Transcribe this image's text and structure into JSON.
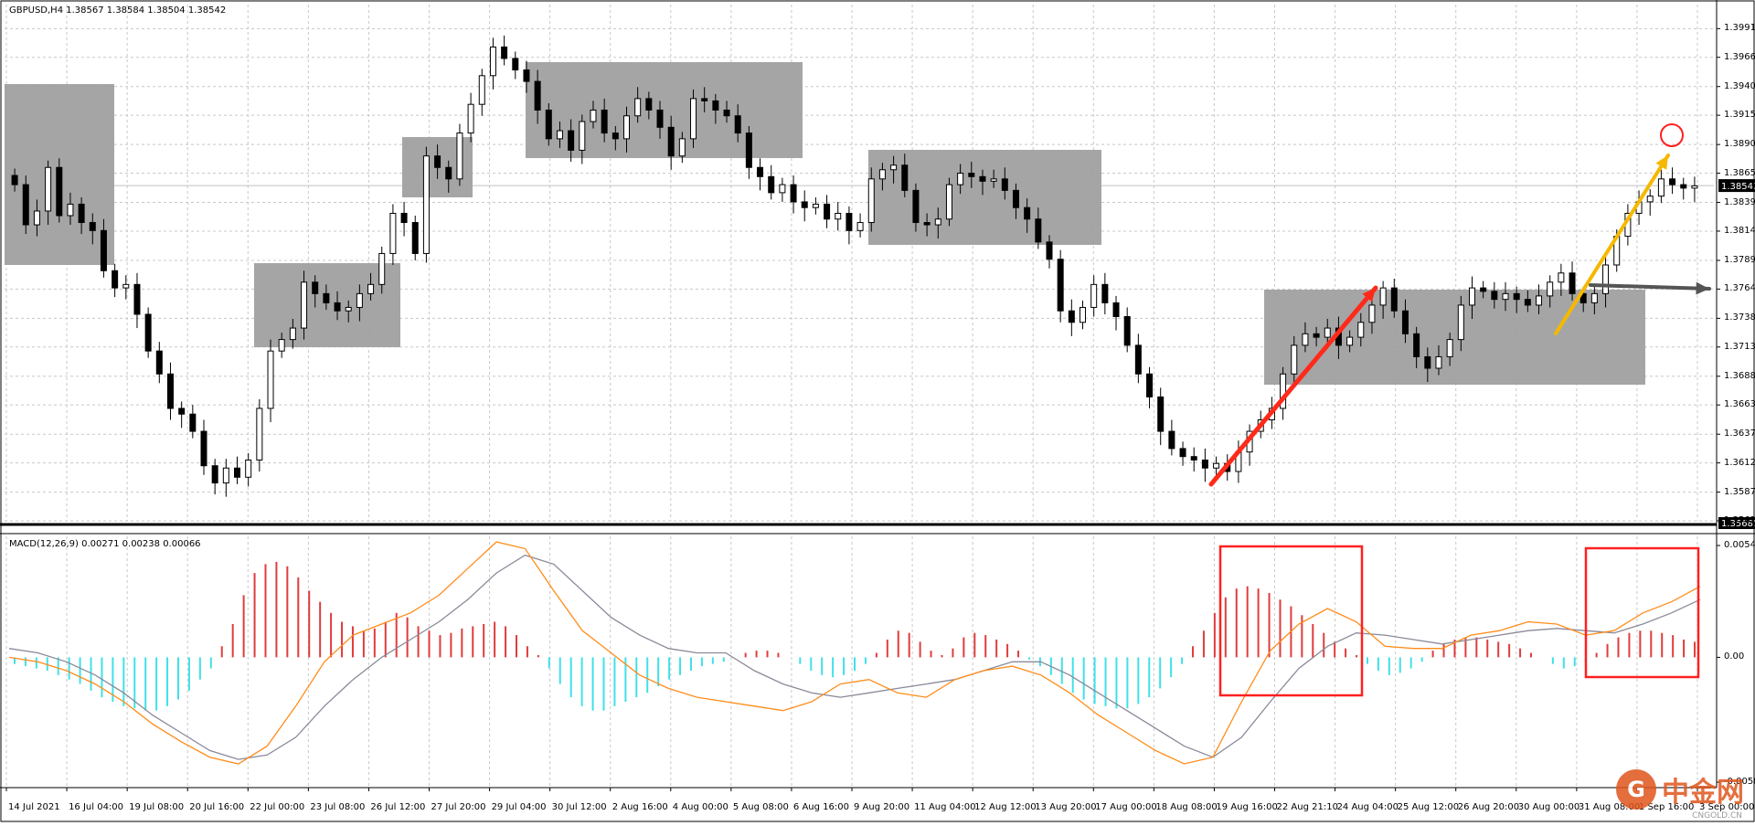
{
  "header": {
    "symbol_info": "GBPUSD,H4  1.38567 1.38584 1.38504 1.38542"
  },
  "macd": {
    "info": "MACD(12,26,9) 0.00271 0.00238 0.00066",
    "axis_labels": [
      "0.00545",
      "0.00",
      "-0.00587"
    ]
  },
  "price_axis": {
    "labels": [
      "1.39910",
      "1.39660",
      "1.39405",
      "1.39155",
      "1.38900",
      "1.38650",
      "1.38395",
      "1.38145",
      "1.37890",
      "1.37640",
      "1.37385",
      "1.37135",
      "1.36880",
      "1.36630",
      "1.36375",
      "1.36125",
      "1.35870",
      "1.35620"
    ],
    "current_price": "1.38542",
    "lower_price": "1.35685"
  },
  "time_axis": {
    "labels": [
      "14 Jul 2021",
      "16 Jul 04:00",
      "19 Jul 08:00",
      "20 Jul 16:00",
      "22 Jul 00:00",
      "23 Jul 08:00",
      "26 Jul 12:00",
      "27 Jul 20:00",
      "29 Jul 04:00",
      "30 Jul 12:00",
      "2 Aug 16:00",
      "4 Aug 00:00",
      "5 Aug 08:00",
      "6 Aug 16:00",
      "9 Aug 20:00",
      "11 Aug 04:00",
      "12 Aug 12:00",
      "13 Aug 20:00",
      "17 Aug 00:00",
      "18 Aug 08:00",
      "19 Aug 16:00",
      "22 Aug 21:10",
      "24 Aug 04:00",
      "25 Aug 12:00",
      "26 Aug 20:00",
      "30 Aug 00:00",
      "31 Aug 08:00",
      "1 Sep 16:00",
      "3 Sep 00:00"
    ]
  },
  "watermark": {
    "logo_char": "G",
    "brand": "中金网",
    "sub": "CNGOLD.CN"
  },
  "colors": {
    "grid": "#c8c8c8",
    "box": "#a0a0a0",
    "hist_pos": "#e03c3c",
    "hist_neg": "#40e0e8",
    "macd_line": "#ff8c1a",
    "signal_line": "#8a8a9a",
    "red_arrow": "#ff2a1a",
    "yellow_arrow": "#f5b800",
    "gray_arrow": "#555555"
  },
  "chart_data": [
    {
      "type": "candlestick",
      "title": "GBPUSD,H4",
      "ylim": [
        1.3562,
        1.4004
      ],
      "candles_close": [
        1.3855,
        1.382,
        1.3832,
        1.387,
        1.3828,
        1.3838,
        1.3822,
        1.3815,
        1.378,
        1.3765,
        1.3768,
        1.3742,
        1.371,
        1.369,
        1.366,
        1.3655,
        1.364,
        1.361,
        1.3595,
        1.3608,
        1.36,
        1.3615,
        1.366,
        1.371,
        1.372,
        1.373,
        1.377,
        1.376,
        1.3752,
        1.3745,
        1.3748,
        1.376,
        1.3768,
        1.3795,
        1.383,
        1.3822,
        1.3795,
        1.388,
        1.387,
        1.386,
        1.39,
        1.3925,
        1.395,
        1.3975,
        1.3965,
        1.3955,
        1.3945,
        1.392,
        1.3895,
        1.3902,
        1.3885,
        1.391,
        1.392,
        1.39,
        1.3895,
        1.3915,
        1.393,
        1.392,
        1.3905,
        1.388,
        1.3895,
        1.393,
        1.3928,
        1.392,
        1.3915,
        1.39,
        1.387,
        1.3862,
        1.3848,
        1.3855,
        1.384,
        1.3835,
        1.3838,
        1.3825,
        1.383,
        1.3815,
        1.3822,
        1.386,
        1.3868,
        1.3872,
        1.385,
        1.3822,
        1.382,
        1.3825,
        1.3855,
        1.3865,
        1.3862,
        1.3858,
        1.386,
        1.385,
        1.3835,
        1.3825,
        1.3805,
        1.379,
        1.3745,
        1.3735,
        1.3748,
        1.3768,
        1.3752,
        1.374,
        1.3715,
        1.369,
        1.367,
        1.364,
        1.3625,
        1.3618,
        1.3615,
        1.3608,
        1.3612,
        1.3605,
        1.3622,
        1.364,
        1.365,
        1.366,
        1.369,
        1.3715,
        1.3725,
        1.3722,
        1.373,
        1.3715,
        1.3722,
        1.3735,
        1.375,
        1.3765,
        1.3745,
        1.3725,
        1.3705,
        1.3695,
        1.3705,
        1.372,
        1.375,
        1.3765,
        1.3762,
        1.3755,
        1.376,
        1.3755,
        1.375,
        1.3758,
        1.377,
        1.3778,
        1.376,
        1.3752,
        1.376,
        1.3785,
        1.381,
        1.383,
        1.384,
        1.3845,
        1.386,
        1.3855,
        1.3852,
        1.3854
      ],
      "annotations": [
        "consolidation boxes",
        "red trend arrow",
        "yellow trend arrow",
        "horizontal gray arrow",
        "red circle at high"
      ]
    },
    {
      "type": "macd",
      "title": "MACD(12,26,9) 0.00271 0.00238 0.00066",
      "ylim": [
        -0.00587,
        0.00545
      ],
      "histogram": [
        -0.0003,
        -0.0004,
        -0.0005,
        -0.0006,
        -0.0008,
        -0.001,
        -0.0012,
        -0.0015,
        -0.0018,
        -0.002,
        -0.0022,
        -0.0023,
        -0.0024,
        -0.0024,
        -0.0022,
        -0.0019,
        -0.0015,
        -0.001,
        -0.0005,
        0.0005,
        0.0015,
        0.0028,
        0.0038,
        0.0042,
        0.0043,
        0.0041,
        0.0036,
        0.003,
        0.0025,
        0.002,
        0.0016,
        0.0014,
        0.0012,
        0.0013,
        0.0016,
        0.002,
        0.0018,
        0.0014,
        0.0012,
        0.001,
        0.0011,
        0.0013,
        0.0014,
        0.0015,
        0.0016,
        0.0014,
        0.001,
        0.0005,
        0.0001,
        -0.0005,
        -0.0012,
        -0.0018,
        -0.0022,
        -0.0024,
        -0.0024,
        -0.0022,
        -0.002,
        -0.0018,
        -0.0016,
        -0.0013,
        -0.001,
        -0.0008,
        -0.0006,
        -0.0004,
        -0.0003,
        -0.0002,
        0.0,
        0.0002,
        0.0003,
        0.0003,
        0.0002,
        0.0,
        -0.0003,
        -0.0006,
        -0.0008,
        -0.0009,
        -0.0008,
        -0.0006,
        -0.0003,
        0.0002,
        0.0008,
        0.0012,
        0.0011,
        0.0007,
        0.0003,
        0.0001,
        0.0004,
        0.0009,
        0.0011,
        0.001,
        0.0008,
        0.0006,
        0.0003,
        -0.0001,
        -0.0004,
        -0.0008,
        -0.0012,
        -0.0016,
        -0.0019,
        -0.0021,
        -0.0022,
        -0.0023,
        -0.0023,
        -0.0021,
        -0.0018,
        -0.0014,
        -0.0009,
        -0.0003,
        0.0005,
        0.0012,
        0.002,
        0.0027,
        0.0031,
        0.0032,
        0.0031,
        0.0029,
        0.0026,
        0.0023,
        0.0019,
        0.0015,
        0.0011,
        0.0007,
        0.0004,
        0.0001,
        -0.0003,
        -0.0006,
        -0.0008,
        -0.0007,
        -0.0005,
        -0.0002,
        0.0003,
        0.0006,
        0.0008,
        0.0009,
        0.0009,
        0.0008,
        0.0007,
        0.0006,
        0.0004,
        0.0002,
        0.0,
        -0.0003,
        -0.0005,
        -0.0004,
        -0.0002,
        0.0002,
        0.0006,
        0.0009,
        0.0011,
        0.0012,
        0.0012,
        0.0011,
        0.001,
        0.0008,
        0.0007
      ],
      "macd_line": [
        0.0,
        -0.0002,
        -0.0006,
        -0.0012,
        -0.002,
        -0.003,
        -0.0038,
        -0.0045,
        -0.0048,
        -0.004,
        -0.0022,
        -0.0002,
        0.001,
        0.0015,
        0.002,
        0.0028,
        0.004,
        0.0052,
        0.0049,
        0.003,
        0.0012,
        0.0002,
        -0.0008,
        -0.0014,
        -0.0018,
        -0.002,
        -0.0022,
        -0.0024,
        -0.002,
        -0.0012,
        -0.001,
        -0.0016,
        -0.0018,
        -0.001,
        -0.0006,
        -0.0004,
        -0.0008,
        -0.0016,
        -0.0026,
        -0.0034,
        -0.0042,
        -0.0048,
        -0.0045,
        -0.002,
        0.0003,
        0.0015,
        0.0022,
        0.0016,
        0.0005,
        0.0004,
        0.0004,
        0.001,
        0.0012,
        0.0016,
        0.0015,
        0.001,
        0.0012,
        0.002,
        0.0025,
        0.0032
      ],
      "signal_line": [
        0.0004,
        0.0002,
        -0.0002,
        -0.0008,
        -0.0016,
        -0.0026,
        -0.0034,
        -0.0042,
        -0.0046,
        -0.0044,
        -0.0036,
        -0.0022,
        -0.001,
        0.0,
        0.0008,
        0.0016,
        0.0026,
        0.0038,
        0.0046,
        0.0042,
        0.003,
        0.0018,
        0.001,
        0.0004,
        0.0002,
        0.0002,
        -0.0006,
        -0.0012,
        -0.0016,
        -0.0018,
        -0.0016,
        -0.0014,
        -0.0012,
        -0.001,
        -0.0006,
        -0.0002,
        -0.0002,
        -0.0008,
        -0.0016,
        -0.0024,
        -0.0032,
        -0.004,
        -0.0045,
        -0.0036,
        -0.002,
        -0.0005,
        0.0005,
        0.0011,
        0.001,
        0.0008,
        0.0006,
        0.0008,
        0.001,
        0.0012,
        0.0013,
        0.0012,
        0.0011,
        0.0015,
        0.002,
        0.0026
      ]
    }
  ]
}
